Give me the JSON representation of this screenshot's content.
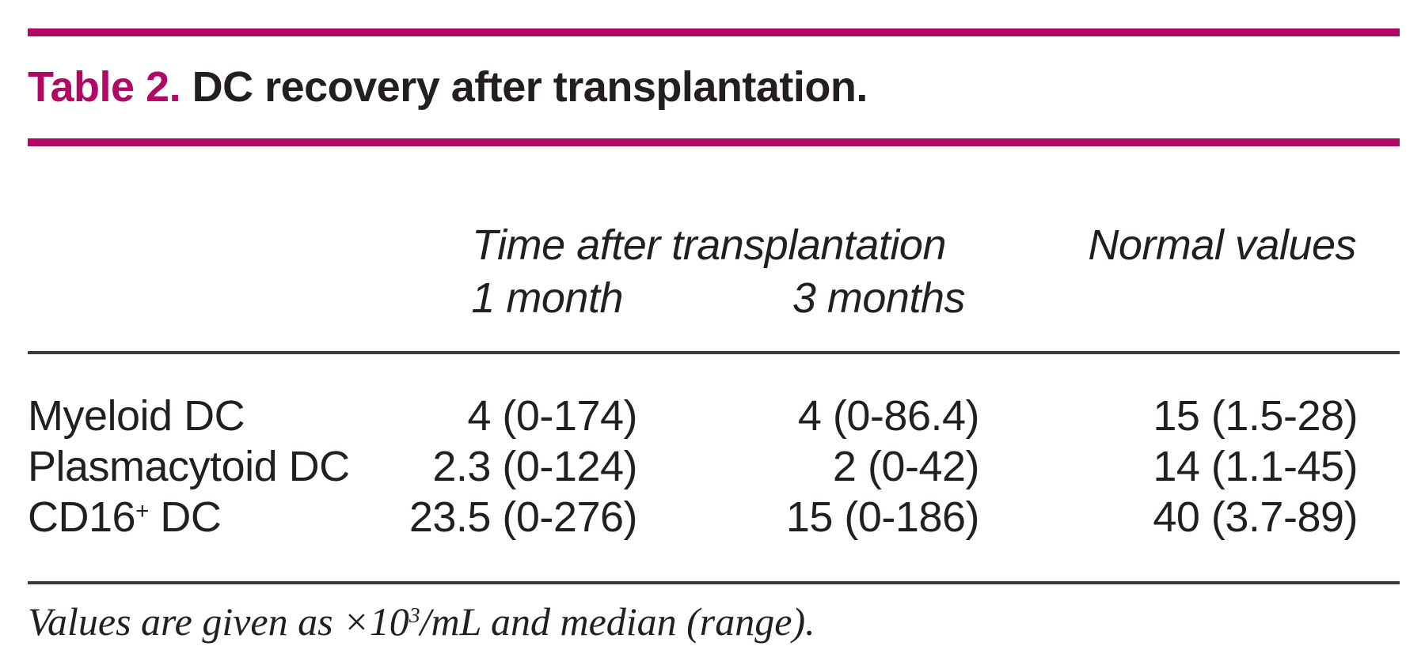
{
  "colors": {
    "accent": "#b10866",
    "text": "#231f20",
    "divider": "#3b3b3b"
  },
  "title": {
    "label": "Table 2.",
    "text": " DC recovery after transplantation."
  },
  "header": {
    "group_label": "Time after transplantation",
    "col_month1": "1 month",
    "col_month3": "3 months",
    "col_normal": "Normal values"
  },
  "table": {
    "rows": [
      {
        "label": "Myeloid DC",
        "label_sup": "",
        "label_rest": "",
        "month1": "4 (0-174)",
        "month3": "4 (0-86.4)",
        "normal": "15 (1.5-28)"
      },
      {
        "label": "Plasmacytoid DC",
        "label_sup": "",
        "label_rest": "",
        "month1": "2.3 (0-124)",
        "month3": "2 (0-42)",
        "normal": "14 (1.1-45)"
      },
      {
        "label": "CD16",
        "label_sup": "+",
        "label_rest": " DC",
        "month1": "23.5 (0-276)",
        "month3": "15 (0-186)",
        "normal": "40 (3.7-89)"
      }
    ]
  },
  "footnote": {
    "part1": "Values are given as ×10",
    "sup": "3",
    "part2": "/mL and median (range)."
  }
}
